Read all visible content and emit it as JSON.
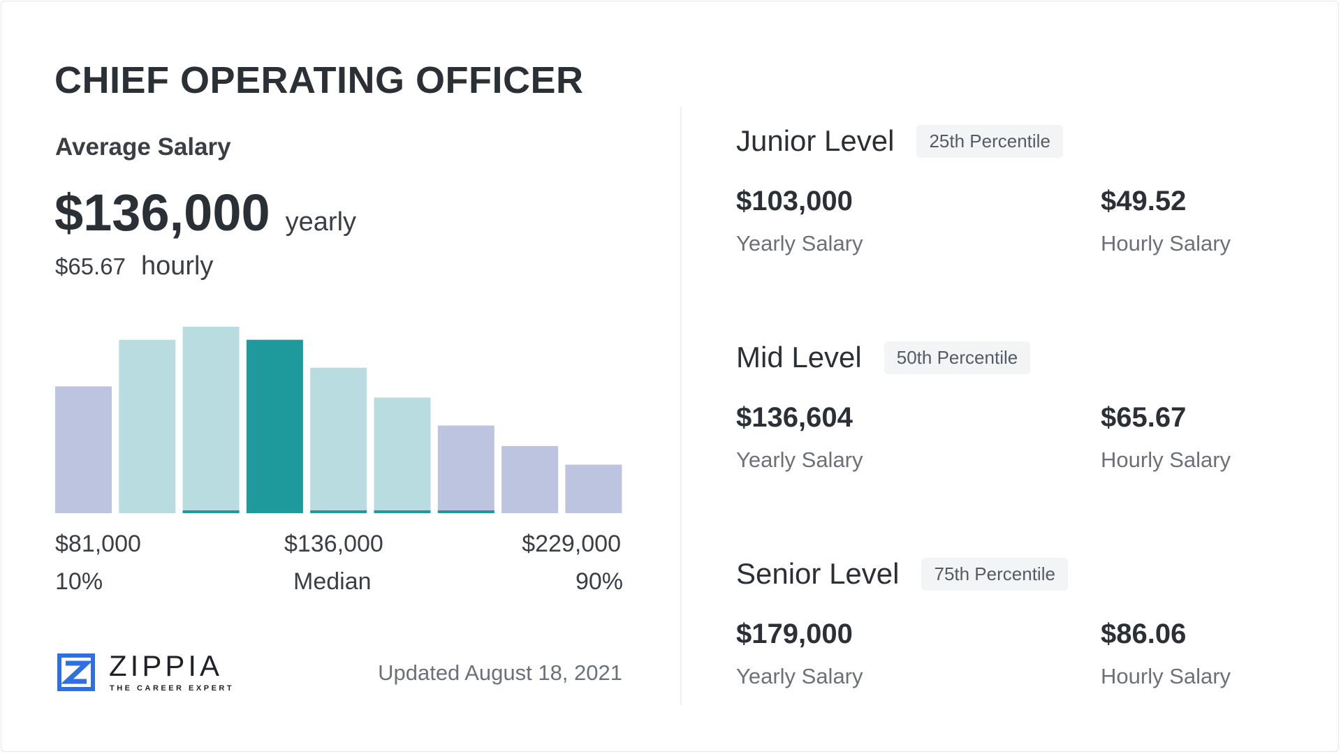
{
  "title": "CHIEF OPERATING OFFICER",
  "average": {
    "label": "Average Salary",
    "yearly": "$136,000",
    "yearly_unit": "yearly",
    "hourly": "$65.67",
    "hourly_unit": "hourly"
  },
  "chart_data": {
    "type": "bar",
    "relative_heights": [
      68,
      93,
      100,
      93,
      78,
      62,
      47,
      36,
      26
    ],
    "bar_roles": [
      "outer",
      "inner",
      "inner",
      "median",
      "inner",
      "inner",
      "outer",
      "outer",
      "outer"
    ],
    "bottom_accent": [
      false,
      false,
      true,
      false,
      true,
      true,
      true,
      false,
      false
    ],
    "colors": {
      "outer": "#bcc4df",
      "inner": "#b9dce0",
      "median": "#1e9a9c",
      "accent": "#1e9a9c"
    },
    "labels": {
      "low_value": "$81,000",
      "low_pct": "10%",
      "median_value": "$136,000",
      "median_label": "Median",
      "high_value": "$229,000",
      "high_pct": "90%"
    }
  },
  "levels": [
    {
      "name": "Junior Level",
      "badge": "25th Percentile",
      "yearly": "$103,000",
      "yearly_label": "Yearly Salary",
      "hourly": "$49.52",
      "hourly_label": "Hourly Salary"
    },
    {
      "name": "Mid Level",
      "badge": "50th Percentile",
      "yearly": "$136,604",
      "yearly_label": "Yearly Salary",
      "hourly": "$65.67",
      "hourly_label": "Hourly Salary"
    },
    {
      "name": "Senior Level",
      "badge": "75th Percentile",
      "yearly": "$179,000",
      "yearly_label": "Yearly Salary",
      "hourly": "$86.06",
      "hourly_label": "Hourly Salary"
    }
  ],
  "footer": {
    "logo_word": "ZIPPIA",
    "logo_tagline": "THE CAREER EXPERT",
    "logo_color": "#2f6fe0",
    "updated": "Updated August 18, 2021"
  }
}
